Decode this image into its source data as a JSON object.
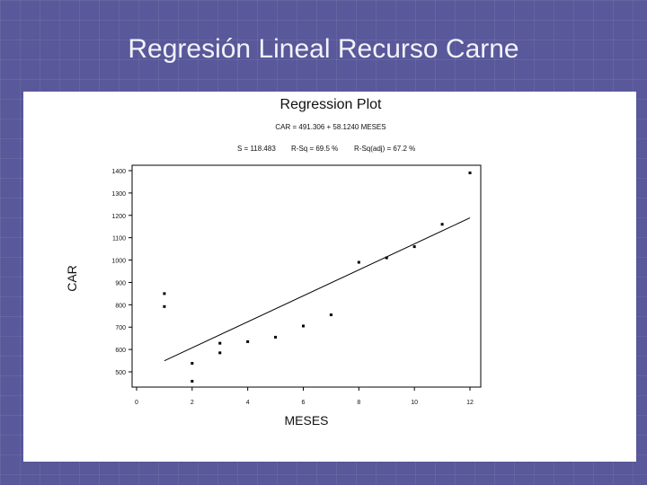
{
  "slide": {
    "title": "Regresión Lineal Recurso Carne"
  },
  "chart_data": {
    "type": "scatter",
    "title": "Regression Plot",
    "equation": "CAR = 491.306 + 58.1240 MESES",
    "stats": {
      "s": "S = 118.483",
      "r_sq": "R-Sq = 69.5 %",
      "r_sq_adj": "R-Sq(adj) = 67.2 %"
    },
    "xlabel": "MESES",
    "ylabel": "CAR",
    "xlim": [
      0,
      12
    ],
    "ylim": [
      450,
      1410
    ],
    "xticks": [
      0,
      2,
      4,
      6,
      8,
      10,
      12
    ],
    "yticks": [
      500,
      600,
      700,
      800,
      900,
      1000,
      1100,
      1200,
      1300,
      1400
    ],
    "grid": false,
    "series": [
      {
        "x": [
          1,
          1,
          2,
          2,
          3,
          3,
          4,
          5,
          6,
          7,
          8,
          9,
          10,
          11,
          12
        ],
        "y": [
          850,
          792,
          538,
          458,
          628,
          585,
          635,
          655,
          705,
          755,
          990,
          1010,
          1060,
          1160,
          1390
        ]
      }
    ],
    "fit_line": {
      "intercept": 491.306,
      "slope": 58.124,
      "x_range": [
        1,
        12
      ]
    }
  }
}
